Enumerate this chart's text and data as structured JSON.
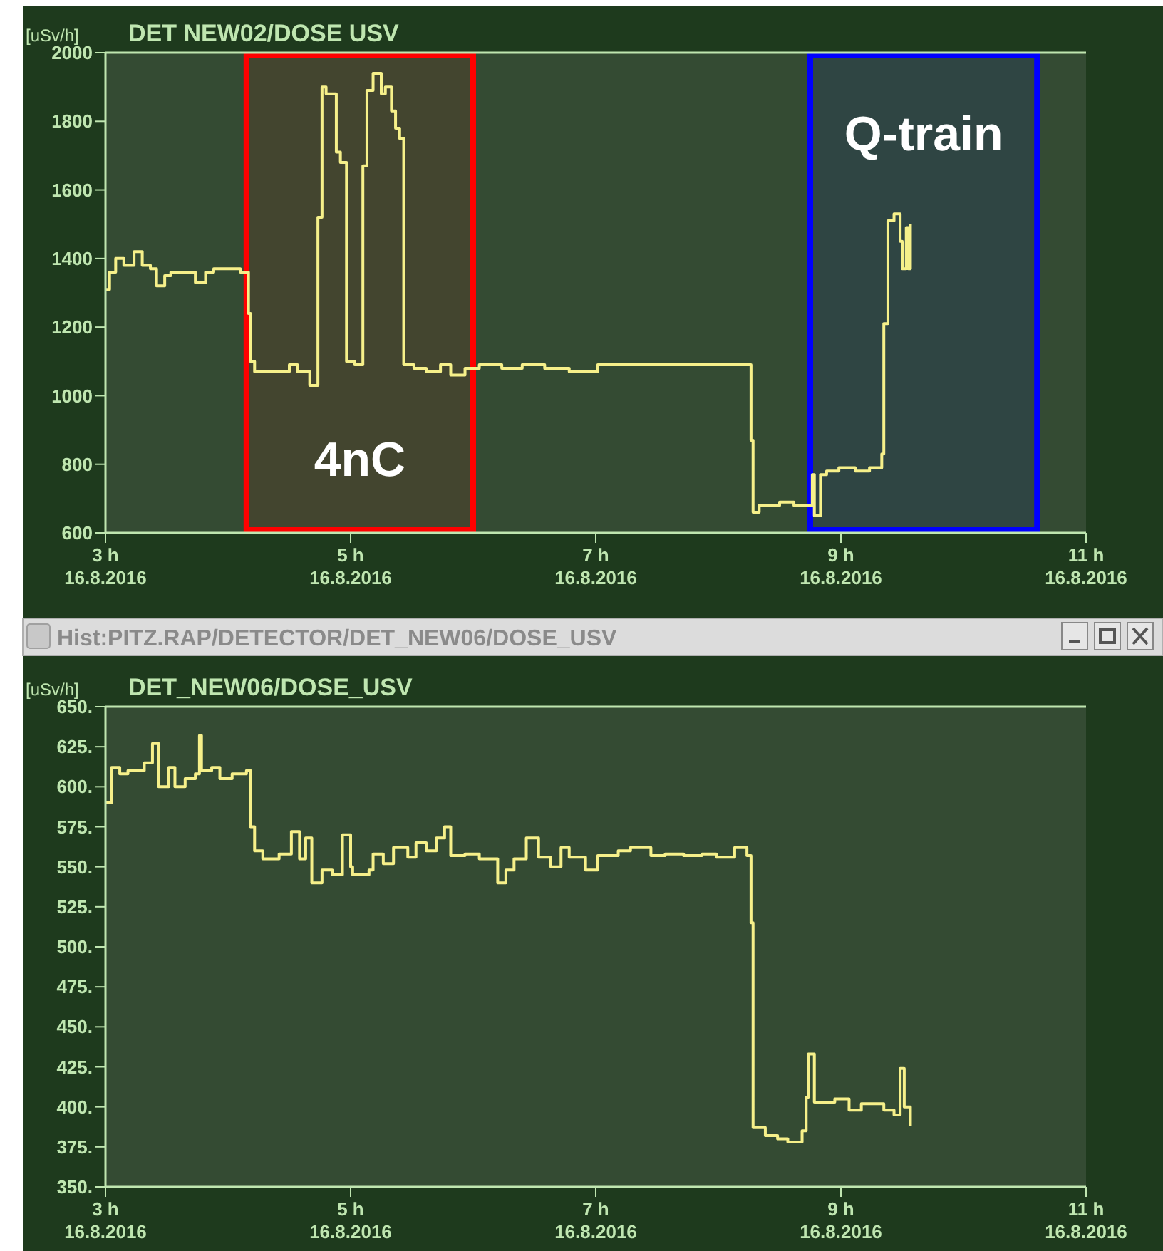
{
  "chart_data": [
    {
      "type": "step",
      "title": "DET NEW02/DOSE USV",
      "ylabel": "[uSv/h]",
      "color": "#f6f08a",
      "x": [
        "2016-08-16T03:00",
        "2016-08-16T03:02",
        "2016-08-16T03:05",
        "2016-08-16T03:09",
        "2016-08-16T03:14",
        "2016-08-16T03:18",
        "2016-08-16T03:22",
        "2016-08-16T03:25",
        "2016-08-16T03:29",
        "2016-08-16T03:32",
        "2016-08-16T03:44",
        "2016-08-16T03:49",
        "2016-08-16T03:53",
        "2016-08-16T04:00",
        "2016-08-16T04:06",
        "2016-08-16T04:10",
        "2016-08-16T04:11",
        "2016-08-16T04:13",
        "2016-08-16T04:23",
        "2016-08-16T04:30",
        "2016-08-16T04:34",
        "2016-08-16T04:40",
        "2016-08-16T04:44",
        "2016-08-16T04:46",
        "2016-08-16T04:48",
        "2016-08-16T04:53",
        "2016-08-16T04:55",
        "2016-08-16T04:58",
        "2016-08-16T05:02",
        "2016-08-16T05:06",
        "2016-08-16T05:08",
        "2016-08-16T05:11",
        "2016-08-16T05:15",
        "2016-08-16T05:17",
        "2016-08-16T05:20",
        "2016-08-16T05:22",
        "2016-08-16T05:24",
        "2016-08-16T05:26",
        "2016-08-16T05:31",
        "2016-08-16T05:37",
        "2016-08-16T05:44",
        "2016-08-16T05:49",
        "2016-08-16T05:56",
        "2016-08-16T06:03",
        "2016-08-16T06:14",
        "2016-08-16T06:24",
        "2016-08-16T06:35",
        "2016-08-16T06:47",
        "2016-08-16T07:01",
        "2016-08-16T07:34",
        "2016-08-16T08:13",
        "2016-08-16T08:16",
        "2016-08-16T08:17",
        "2016-08-16T08:20",
        "2016-08-16T08:30",
        "2016-08-16T08:37",
        "2016-08-16T08:46",
        "2016-08-16T08:47",
        "2016-08-16T08:50",
        "2016-08-16T08:53",
        "2016-08-16T08:59",
        "2016-08-16T09:07",
        "2016-08-16T09:14",
        "2016-08-16T09:20",
        "2016-08-16T09:21",
        "2016-08-16T09:23",
        "2016-08-16T09:26",
        "2016-08-16T09:29",
        "2016-08-16T09:30",
        "2016-08-16T09:32",
        "2016-08-16T09:33",
        "2016-08-16T09:34"
      ],
      "values": [
        1310,
        1360,
        1400,
        1380,
        1420,
        1380,
        1370,
        1320,
        1350,
        1360,
        1330,
        1360,
        1370,
        1370,
        1360,
        1240,
        1100,
        1070,
        1070,
        1090,
        1070,
        1030,
        1520,
        1900,
        1880,
        1710,
        1680,
        1100,
        1090,
        1670,
        1890,
        1940,
        1880,
        1900,
        1830,
        1780,
        1750,
        1090,
        1080,
        1070,
        1090,
        1060,
        1080,
        1090,
        1080,
        1090,
        1080,
        1070,
        1090,
        1090,
        1090,
        870,
        660,
        680,
        690,
        680,
        770,
        650,
        770,
        780,
        790,
        780,
        790,
        830,
        1210,
        1510,
        1530,
        1450,
        1370,
        1490,
        1370,
        1500
      ],
      "xlim": [
        "2016-08-16T03:00",
        "2016-08-16T11:00"
      ],
      "xticks": [
        {
          "value": "2016-08-16T03:00",
          "label": "3 h\n16.8.2016"
        },
        {
          "value": "2016-08-16T05:00",
          "label": "5 h\n16.8.2016"
        },
        {
          "value": "2016-08-16T07:00",
          "label": "7 h\n16.8.2016"
        },
        {
          "value": "2016-08-16T09:00",
          "label": "9 h\n16.8.2016"
        },
        {
          "value": "2016-08-16T11:00",
          "label": "11 h\n16.8.2016"
        }
      ],
      "ylim": [
        600,
        2000
      ],
      "yticks": [
        600,
        800,
        1000,
        1200,
        1400,
        1600,
        1800,
        2000
      ],
      "bands": [
        {
          "axis": "x",
          "from": "2016-08-16T04:09",
          "to": "2016-08-16T06:00",
          "label": "4nC",
          "color": "#ff0000"
        },
        {
          "axis": "x",
          "from": "2016-08-16T08:45",
          "to": "2016-08-16T10:36",
          "label": "Q-train",
          "color": "#0000ff"
        }
      ]
    },
    {
      "type": "step",
      "title": "Hist:PITZ.RAP/DETECTOR/DET_NEW06/DOSE_USV",
      "subtitle": "DET_NEW06/DOSE_USV",
      "ylabel": "[uSv/h]",
      "color": "#f6f08a",
      "x": [
        "2016-08-16T03:00",
        "2016-08-16T03:03",
        "2016-08-16T03:07",
        "2016-08-16T03:11",
        "2016-08-16T03:19",
        "2016-08-16T03:23",
        "2016-08-16T03:26",
        "2016-08-16T03:31",
        "2016-08-16T03:34",
        "2016-08-16T03:39",
        "2016-08-16T03:44",
        "2016-08-16T03:46",
        "2016-08-16T03:47",
        "2016-08-16T03:52",
        "2016-08-16T03:56",
        "2016-08-16T04:02",
        "2016-08-16T04:09",
        "2016-08-16T04:11",
        "2016-08-16T04:13",
        "2016-08-16T04:17",
        "2016-08-16T04:25",
        "2016-08-16T04:31",
        "2016-08-16T04:35",
        "2016-08-16T04:38",
        "2016-08-16T04:41",
        "2016-08-16T04:46",
        "2016-08-16T04:51",
        "2016-08-16T04:56",
        "2016-08-16T05:00",
        "2016-08-16T05:01",
        "2016-08-16T05:09",
        "2016-08-16T05:11",
        "2016-08-16T05:16",
        "2016-08-16T05:21",
        "2016-08-16T05:28",
        "2016-08-16T05:32",
        "2016-08-16T05:37",
        "2016-08-16T05:42",
        "2016-08-16T05:46",
        "2016-08-16T05:49",
        "2016-08-16T05:56",
        "2016-08-16T06:03",
        "2016-08-16T06:11",
        "2016-08-16T06:12",
        "2016-08-16T06:16",
        "2016-08-16T06:20",
        "2016-08-16T06:26",
        "2016-08-16T06:32",
        "2016-08-16T06:38",
        "2016-08-16T06:43",
        "2016-08-16T06:47",
        "2016-08-16T06:55",
        "2016-08-16T07:01",
        "2016-08-16T07:11",
        "2016-08-16T07:17",
        "2016-08-16T07:27",
        "2016-08-16T07:34",
        "2016-08-16T07:43",
        "2016-08-16T07:52",
        "2016-08-16T07:59",
        "2016-08-16T08:08",
        "2016-08-16T08:14",
        "2016-08-16T08:16",
        "2016-08-16T08:17",
        "2016-08-16T08:23",
        "2016-08-16T08:29",
        "2016-08-16T08:34",
        "2016-08-16T08:41",
        "2016-08-16T08:43",
        "2016-08-16T08:44",
        "2016-08-16T08:47",
        "2016-08-16T08:57",
        "2016-08-16T09:04",
        "2016-08-16T09:10",
        "2016-08-16T09:21",
        "2016-08-16T09:26",
        "2016-08-16T09:29",
        "2016-08-16T09:31",
        "2016-08-16T09:34"
      ],
      "values": [
        590,
        612,
        608,
        610,
        615,
        627,
        600,
        612,
        600,
        605,
        608,
        632,
        610,
        612,
        605,
        608,
        610,
        575,
        560,
        555,
        558,
        572,
        555,
        568,
        540,
        548,
        545,
        570,
        550,
        545,
        548,
        558,
        552,
        562,
        556,
        565,
        560,
        568,
        575,
        557,
        558,
        555,
        555,
        540,
        548,
        555,
        568,
        556,
        550,
        562,
        556,
        548,
        557,
        560,
        562,
        557,
        558,
        557,
        558,
        556,
        562,
        557,
        515,
        387,
        382,
        380,
        378,
        385,
        406,
        433,
        403,
        405,
        398,
        402,
        398,
        395,
        424,
        400,
        388
      ],
      "xlim": [
        "2016-08-16T03:00",
        "2016-08-16T11:00"
      ],
      "xticks": [
        {
          "value": "2016-08-16T03:00",
          "label": "3 h\n16.8.2016"
        },
        {
          "value": "2016-08-16T05:00",
          "label": "5 h\n16.8.2016"
        },
        {
          "value": "2016-08-16T07:00",
          "label": "7 h\n16.8.2016"
        },
        {
          "value": "2016-08-16T09:00",
          "label": "9 h\n16.8.2016"
        },
        {
          "value": "2016-08-16T11:00",
          "label": "11 h\n16.8.2016"
        }
      ],
      "ylim": [
        350,
        650
      ],
      "yticks": [
        {
          "value": 350,
          "label": "350."
        },
        {
          "value": 375,
          "label": "375."
        },
        {
          "value": 400,
          "label": "400."
        },
        {
          "value": 425,
          "label": "425."
        },
        {
          "value": 450,
          "label": "450."
        },
        {
          "value": 475,
          "label": "475."
        },
        {
          "value": 500,
          "label": "500."
        },
        {
          "value": 525,
          "label": "525."
        },
        {
          "value": 550,
          "label": "550."
        },
        {
          "value": 575,
          "label": "575."
        },
        {
          "value": 600,
          "label": "600."
        },
        {
          "value": 625,
          "label": "625."
        },
        {
          "value": 650,
          "label": "650."
        }
      ]
    }
  ]
}
